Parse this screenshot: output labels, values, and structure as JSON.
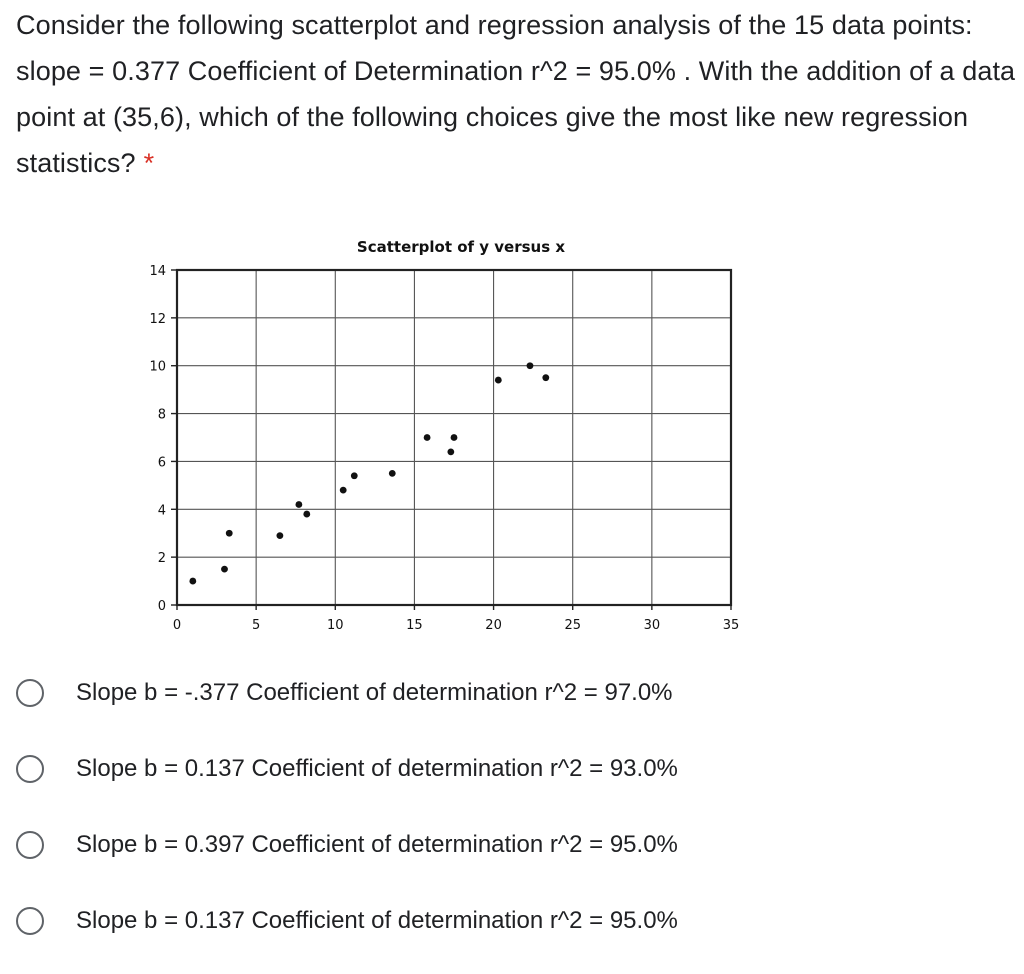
{
  "question": {
    "text": "Consider the following scatterplot and regression analysis of the 15 data points: slope = 0.377 Coefficient of Determination r^2 = 95.0% . With the addition of a data point at (35,6), which of the following choices give the most like new regression statistics?",
    "required_marker": "*"
  },
  "chart_data": {
    "type": "scatter",
    "title": "Scatterplot of y versus x",
    "xlabel": "",
    "ylabel": "",
    "xlim": [
      0,
      35
    ],
    "ylim": [
      0,
      14
    ],
    "xticks": [
      0,
      5,
      10,
      15,
      20,
      25,
      30,
      35
    ],
    "yticks": [
      0,
      2,
      4,
      6,
      8,
      10,
      12,
      14
    ],
    "grid": true,
    "points": [
      {
        "x": 1,
        "y": 1
      },
      {
        "x": 3,
        "y": 1.5
      },
      {
        "x": 3.3,
        "y": 3
      },
      {
        "x": 6.5,
        "y": 2.9
      },
      {
        "x": 7.7,
        "y": 4.2
      },
      {
        "x": 8.2,
        "y": 3.8
      },
      {
        "x": 10.5,
        "y": 4.8
      },
      {
        "x": 11.2,
        "y": 5.4
      },
      {
        "x": 13.6,
        "y": 5.5
      },
      {
        "x": 15.8,
        "y": 7
      },
      {
        "x": 17.3,
        "y": 6.4
      },
      {
        "x": 17.5,
        "y": 7
      },
      {
        "x": 20.3,
        "y": 9.4
      },
      {
        "x": 22.3,
        "y": 10
      },
      {
        "x": 23.3,
        "y": 9.5
      }
    ]
  },
  "options": [
    {
      "label": "Slope b = -.377 Coefficient of determination r^2 = 97.0%"
    },
    {
      "label": "Slope b = 0.137 Coefficient of determination r^2 = 93.0%"
    },
    {
      "label": "Slope b = 0.397 Coefficient of determination r^2 = 95.0%"
    },
    {
      "label": "Slope b = 0.137 Coefficient of determination r^2 = 95.0%"
    }
  ]
}
